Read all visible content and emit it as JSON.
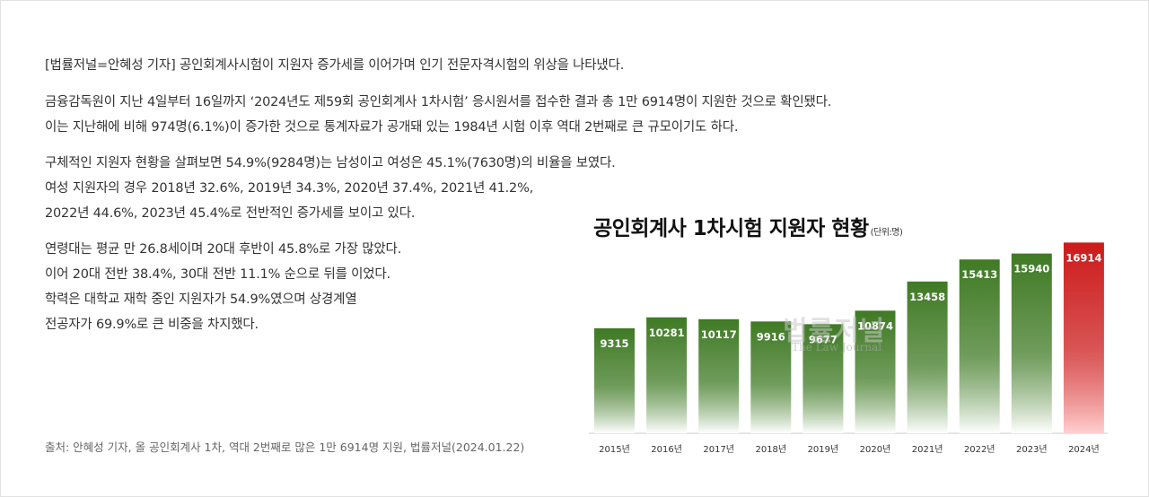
{
  "article": {
    "lines": [
      "[법률저널=안혜성 기자] 공인회계사시험이 지원자 증가세를 이어가며 인기 전문자격시험의 위상을 나타냈다.",
      "금융감독원이 지난 4일부터 16일까지 ‘2024년도 제59회 공인회계사 1차시험’ 응시원서를 접수한 결과 총 1만 6914명이 지원한 것으로 확인됐다.",
      "이는 지난해에 비해 974명(6.1%)이 증가한 것으로 통계자료가 공개돼 있는 1984년 시험 이후 역대 2번째로 큰 규모이기도 하다.",
      "구체적인 지원자 현황을 살펴보면 54.9%(9284명)는 남성이고 여성은 45.1%(7630명)의 비율을 보였다.",
      "여성 지원자의 경우 2018년 32.6%, 2019년 34.3%, 2020년 37.4%, 2021년 41.2%,",
      "2022년 44.6%, 2023년 45.4%로 전반적인 증가세를 보이고 있다.",
      "연령대는 평균 만 26.8세이며 20대 후반이 45.8%로 가장 많았다.",
      "이어 20대 전반 38.4%, 30대 전반 11.1% 순으로 뒤를 이었다.",
      "학력은 대학교 재학 중인 지원자가 54.9%였으며 상경계열",
      "전공자가 69.9%로 큰 비중을 차지했다."
    ],
    "source": "출처: 안혜성 기자, 올 공인회계사 1차, 역대 2번째로 많은 1만 6914명 지원, 법률저널(2024.01.22)"
  },
  "watermark": {
    "main": "법률저널",
    "sub": "The Law Journal"
  },
  "colors": {
    "green_top": "#3f7a24",
    "green_bottom": "#ffffff",
    "red_top": "#cc1a1a",
    "red_bottom": "#ffd0d0"
  },
  "chart_data": {
    "type": "bar",
    "title": "공인회계사 1차시험 지원자 현황",
    "unit": "(단위:명)",
    "categories": [
      "2015년",
      "2016년",
      "2017년",
      "2018년",
      "2019년",
      "2020년",
      "2021년",
      "2022년",
      "2023년",
      "2024년"
    ],
    "values": [
      9315,
      10281,
      10117,
      9916,
      9677,
      10874,
      13458,
      15413,
      15940,
      16914
    ],
    "highlight_index": 9,
    "ylim": [
      0,
      17500
    ],
    "grid": false,
    "legend": "none"
  }
}
